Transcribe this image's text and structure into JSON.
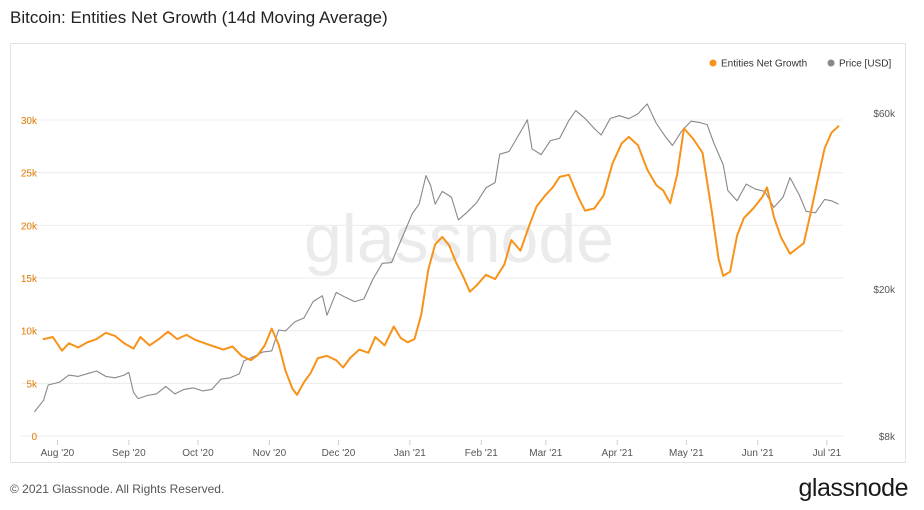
{
  "page": {
    "title": "Bitcoin: Entities Net Growth (14d Moving Average)",
    "footer": "© 2021 Glassnode. All Rights Reserved.",
    "brand": "glassnode",
    "watermark": "glassnode"
  },
  "colors": {
    "growth": "#f7931a",
    "price": "#888888",
    "grid": "#ececec",
    "axis_left": "#e07b00",
    "axis_text": "#555555"
  },
  "chart_data": {
    "type": "line",
    "title": "Bitcoin: Entities Net Growth (14d Moving Average)",
    "legend": {
      "position": "top-right",
      "items": [
        "Entities Net Growth",
        "Price [USD]"
      ]
    },
    "x_ticks": [
      "Aug '20",
      "Sep '20",
      "Oct '20",
      "Nov '20",
      "Dec '20",
      "Jan '21",
      "Feb '21",
      "Mar '21",
      "Apr '21",
      "May '21",
      "Jun '21",
      "Jul '21"
    ],
    "y_left": {
      "ticks": [
        "0",
        "5k",
        "10k",
        "15k",
        "20k",
        "25k",
        "30k"
      ],
      "ylim": [
        0,
        30000
      ]
    },
    "y_right": {
      "ticks": [
        "$8k",
        "$20k",
        "$60k"
      ],
      "scale": "log",
      "ylim": [
        8000,
        60000
      ]
    },
    "grid": true,
    "series": [
      {
        "name": "Entities Net Growth",
        "axis": "left",
        "points": [
          [
            "2020-07-26",
            9200
          ],
          [
            "2020-07-30",
            9400
          ],
          [
            "2020-08-03",
            8100
          ],
          [
            "2020-08-06",
            8800
          ],
          [
            "2020-08-10",
            8400
          ],
          [
            "2020-08-14",
            8900
          ],
          [
            "2020-08-18",
            9200
          ],
          [
            "2020-08-22",
            9800
          ],
          [
            "2020-08-26",
            9500
          ],
          [
            "2020-08-30",
            8800
          ],
          [
            "2020-09-03",
            8300
          ],
          [
            "2020-09-06",
            9400
          ],
          [
            "2020-09-10",
            8600
          ],
          [
            "2020-09-14",
            9200
          ],
          [
            "2020-09-18",
            9900
          ],
          [
            "2020-09-22",
            9200
          ],
          [
            "2020-09-26",
            9600
          ],
          [
            "2020-09-30",
            9100
          ],
          [
            "2020-10-04",
            8800
          ],
          [
            "2020-10-08",
            8500
          ],
          [
            "2020-10-12",
            8200
          ],
          [
            "2020-10-16",
            8500
          ],
          [
            "2020-10-20",
            7600
          ],
          [
            "2020-10-24",
            7200
          ],
          [
            "2020-10-27",
            7700
          ],
          [
            "2020-10-30",
            8600
          ],
          [
            "2020-11-02",
            10200
          ],
          [
            "2020-11-05",
            8700
          ],
          [
            "2020-11-08",
            6200
          ],
          [
            "2020-11-11",
            4500
          ],
          [
            "2020-11-13",
            3900
          ],
          [
            "2020-11-16",
            5100
          ],
          [
            "2020-11-19",
            6000
          ],
          [
            "2020-11-22",
            7400
          ],
          [
            "2020-11-26",
            7600
          ],
          [
            "2020-11-30",
            7200
          ],
          [
            "2020-12-03",
            6500
          ],
          [
            "2020-12-06",
            7400
          ],
          [
            "2020-12-10",
            8200
          ],
          [
            "2020-12-14",
            7900
          ],
          [
            "2020-12-17",
            9400
          ],
          [
            "2020-12-21",
            8600
          ],
          [
            "2020-12-25",
            10400
          ],
          [
            "2020-12-28",
            9300
          ],
          [
            "2020-12-31",
            8900
          ],
          [
            "2021-01-03",
            9200
          ],
          [
            "2021-01-06",
            11600
          ],
          [
            "2021-01-09",
            15800
          ],
          [
            "2021-01-12",
            18200
          ],
          [
            "2021-01-15",
            18900
          ],
          [
            "2021-01-18",
            18100
          ],
          [
            "2021-01-21",
            16500
          ],
          [
            "2021-01-24",
            15200
          ],
          [
            "2021-01-27",
            13700
          ],
          [
            "2021-01-30",
            14300
          ],
          [
            "2021-02-03",
            15300
          ],
          [
            "2021-02-07",
            14900
          ],
          [
            "2021-02-11",
            16300
          ],
          [
            "2021-02-14",
            18600
          ],
          [
            "2021-02-18",
            17600
          ],
          [
            "2021-02-22",
            20100
          ],
          [
            "2021-02-25",
            21800
          ],
          [
            "2021-03-01",
            22900
          ],
          [
            "2021-03-04",
            23600
          ],
          [
            "2021-03-07",
            24600
          ],
          [
            "2021-03-11",
            24800
          ],
          [
            "2021-03-15",
            22700
          ],
          [
            "2021-03-18",
            21400
          ],
          [
            "2021-03-22",
            21600
          ],
          [
            "2021-03-26",
            22800
          ],
          [
            "2021-03-30",
            25900
          ],
          [
            "2021-04-03",
            27800
          ],
          [
            "2021-04-06",
            28400
          ],
          [
            "2021-04-10",
            27600
          ],
          [
            "2021-04-14",
            25300
          ],
          [
            "2021-04-18",
            23800
          ],
          [
            "2021-04-21",
            23300
          ],
          [
            "2021-04-24",
            22100
          ],
          [
            "2021-04-27",
            24800
          ],
          [
            "2021-04-30",
            29200
          ],
          [
            "2021-05-04",
            28200
          ],
          [
            "2021-05-08",
            26900
          ],
          [
            "2021-05-12",
            21400
          ],
          [
            "2021-05-15",
            16800
          ],
          [
            "2021-05-17",
            15200
          ],
          [
            "2021-05-20",
            15600
          ],
          [
            "2021-05-23",
            19000
          ],
          [
            "2021-05-26",
            20700
          ],
          [
            "2021-05-30",
            21600
          ],
          [
            "2021-06-03",
            22700
          ],
          [
            "2021-06-05",
            23600
          ],
          [
            "2021-06-08",
            20800
          ],
          [
            "2021-06-11",
            18900
          ],
          [
            "2021-06-15",
            17300
          ],
          [
            "2021-06-18",
            17800
          ],
          [
            "2021-06-21",
            18300
          ],
          [
            "2021-06-24",
            21200
          ],
          [
            "2021-06-27",
            24300
          ],
          [
            "2021-06-30",
            27300
          ],
          [
            "2021-07-03",
            28800
          ],
          [
            "2021-07-06",
            29400
          ]
        ]
      },
      {
        "name": "Price [USD]",
        "axis": "right",
        "points": [
          [
            "2020-07-22",
            9300
          ],
          [
            "2020-07-26",
            10000
          ],
          [
            "2020-07-28",
            11000
          ],
          [
            "2020-08-02",
            11200
          ],
          [
            "2020-08-06",
            11700
          ],
          [
            "2020-08-10",
            11600
          ],
          [
            "2020-08-14",
            11800
          ],
          [
            "2020-08-18",
            12000
          ],
          [
            "2020-08-22",
            11600
          ],
          [
            "2020-08-26",
            11500
          ],
          [
            "2020-08-30",
            11700
          ],
          [
            "2020-09-01",
            11900
          ],
          [
            "2020-09-03",
            10500
          ],
          [
            "2020-09-05",
            10100
          ],
          [
            "2020-09-09",
            10300
          ],
          [
            "2020-09-13",
            10400
          ],
          [
            "2020-09-17",
            10900
          ],
          [
            "2020-09-21",
            10400
          ],
          [
            "2020-09-25",
            10700
          ],
          [
            "2020-09-29",
            10800
          ],
          [
            "2020-10-03",
            10600
          ],
          [
            "2020-10-07",
            10700
          ],
          [
            "2020-10-11",
            11400
          ],
          [
            "2020-10-15",
            11500
          ],
          [
            "2020-10-19",
            11800
          ],
          [
            "2020-10-21",
            12800
          ],
          [
            "2020-10-25",
            13100
          ],
          [
            "2020-10-29",
            13500
          ],
          [
            "2020-11-02",
            13600
          ],
          [
            "2020-11-05",
            15500
          ],
          [
            "2020-11-08",
            15400
          ],
          [
            "2020-11-12",
            16300
          ],
          [
            "2020-11-16",
            16700
          ],
          [
            "2020-11-20",
            18500
          ],
          [
            "2020-11-24",
            19200
          ],
          [
            "2020-11-26",
            17000
          ],
          [
            "2020-11-30",
            19600
          ],
          [
            "2020-12-04",
            19000
          ],
          [
            "2020-12-08",
            18500
          ],
          [
            "2020-12-12",
            18800
          ],
          [
            "2020-12-16",
            21300
          ],
          [
            "2020-12-20",
            23500
          ],
          [
            "2020-12-24",
            23600
          ],
          [
            "2020-12-28",
            27000
          ],
          [
            "2021-01-02",
            32000
          ],
          [
            "2021-01-05",
            34000
          ],
          [
            "2021-01-08",
            40600
          ],
          [
            "2021-01-10",
            38200
          ],
          [
            "2021-01-12",
            34000
          ],
          [
            "2021-01-15",
            36800
          ],
          [
            "2021-01-19",
            35500
          ],
          [
            "2021-01-22",
            30800
          ],
          [
            "2021-01-26",
            32400
          ],
          [
            "2021-01-30",
            34300
          ],
          [
            "2021-02-03",
            37600
          ],
          [
            "2021-02-07",
            38900
          ],
          [
            "2021-02-09",
            46400
          ],
          [
            "2021-02-13",
            47200
          ],
          [
            "2021-02-17",
            52000
          ],
          [
            "2021-02-21",
            57500
          ],
          [
            "2021-02-23",
            48000
          ],
          [
            "2021-02-27",
            46300
          ],
          [
            "2021-03-03",
            50500
          ],
          [
            "2021-03-07",
            51200
          ],
          [
            "2021-03-11",
            57300
          ],
          [
            "2021-03-14",
            60900
          ],
          [
            "2021-03-18",
            58000
          ],
          [
            "2021-03-22",
            54500
          ],
          [
            "2021-03-25",
            52300
          ],
          [
            "2021-03-29",
            58000
          ],
          [
            "2021-04-02",
            59000
          ],
          [
            "2021-04-06",
            57900
          ],
          [
            "2021-04-10",
            59700
          ],
          [
            "2021-04-14",
            63500
          ],
          [
            "2021-04-18",
            56200
          ],
          [
            "2021-04-22",
            51700
          ],
          [
            "2021-04-25",
            49000
          ],
          [
            "2021-04-29",
            53600
          ],
          [
            "2021-05-03",
            57000
          ],
          [
            "2021-05-07",
            56500
          ],
          [
            "2021-05-10",
            55800
          ],
          [
            "2021-05-13",
            49600
          ],
          [
            "2021-05-17",
            43500
          ],
          [
            "2021-05-19",
            37000
          ],
          [
            "2021-05-23",
            34700
          ],
          [
            "2021-05-27",
            38500
          ],
          [
            "2021-05-31",
            37300
          ],
          [
            "2021-06-04",
            36800
          ],
          [
            "2021-06-08",
            33300
          ],
          [
            "2021-06-12",
            35500
          ],
          [
            "2021-06-15",
            40100
          ],
          [
            "2021-06-19",
            36000
          ],
          [
            "2021-06-22",
            32500
          ],
          [
            "2021-06-26",
            32200
          ],
          [
            "2021-06-30",
            35000
          ],
          [
            "2021-07-03",
            34700
          ],
          [
            "2021-07-06",
            34000
          ]
        ]
      }
    ]
  }
}
